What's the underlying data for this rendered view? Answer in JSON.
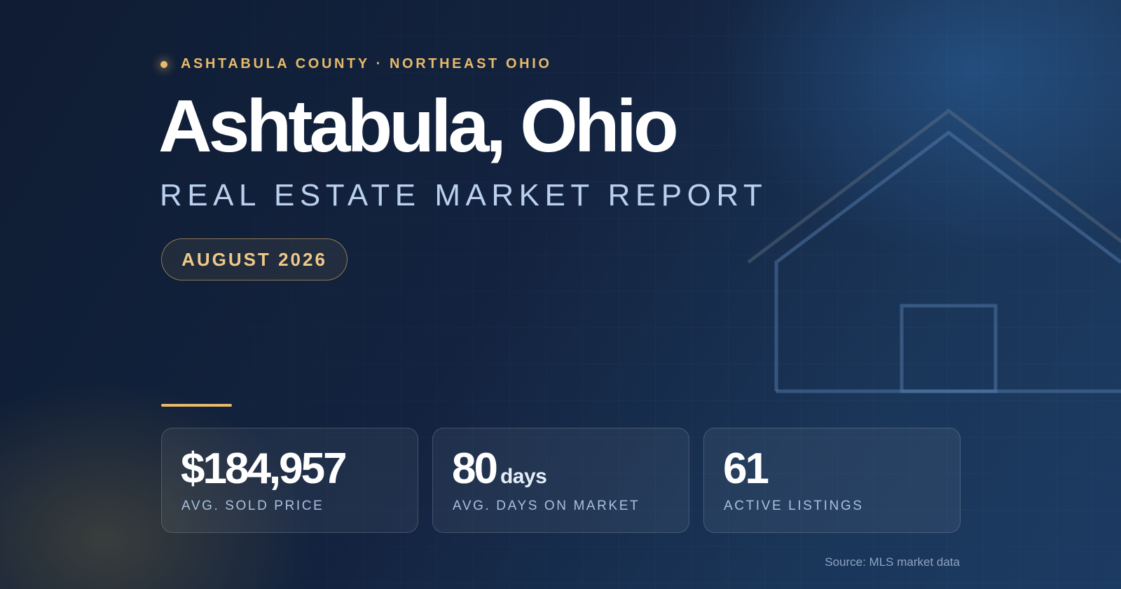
{
  "eyebrow": "ASHTABULA COUNTY · NORTHEAST OHIO",
  "title": "Ashtabula, Ohio",
  "subtitle": "REAL ESTATE MARKET REPORT",
  "date": "AUGUST 2026",
  "stats": [
    {
      "value": "$184,957",
      "label": "AVG. SOLD PRICE"
    },
    {
      "value": "80",
      "unit": "days",
      "label": "AVG. DAYS ON MARKET"
    },
    {
      "value": "61",
      "label": "ACTIVE LISTINGS"
    }
  ],
  "source": "Source: MLS market data"
}
